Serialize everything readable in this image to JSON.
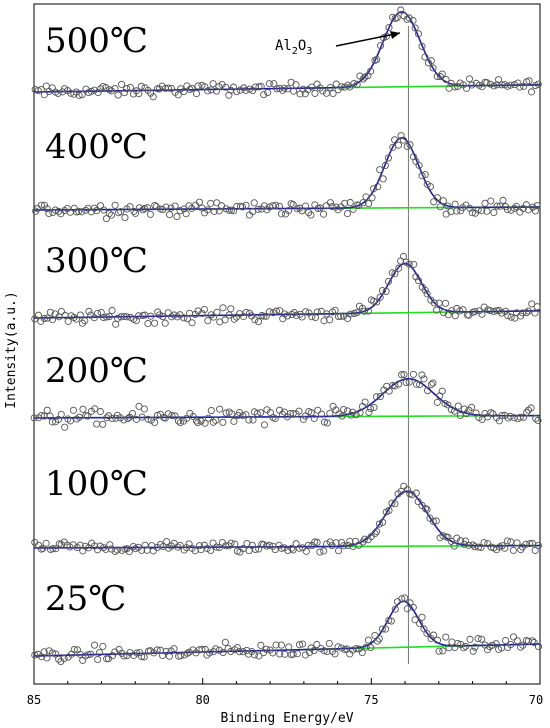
{
  "chart_data": {
    "type": "scatter",
    "title": "",
    "xlabel": "Binding Energy/eV",
    "ylabel": "Intensity(a.u.)",
    "xlim": [
      85,
      70
    ],
    "x_reversed": true,
    "xticks": [
      85,
      80,
      75,
      70
    ],
    "xtick_labels": [
      "85",
      "80",
      "75",
      "70"
    ],
    "grid": false,
    "legend": "none",
    "reference_line": {
      "x": 73.9
    },
    "annotation": {
      "base": "Al",
      "sub1": "2",
      "mid": "O",
      "sub2": "3",
      "points_to": 74.2
    },
    "colors": {
      "fit": "#1f1fa8",
      "background": "#22dd22",
      "points": "#555555",
      "reference": "#777777"
    },
    "series": [
      {
        "name": "500℃",
        "peak_center": 74.1,
        "peak_sigma": 0.55,
        "peak_height": 1.0,
        "background_start": 0.0,
        "background_end": 0.12,
        "noise": 0.08
      },
      {
        "name": "400℃",
        "peak_center": 74.1,
        "peak_sigma": 0.5,
        "peak_height": 1.0,
        "background_start": 0.0,
        "background_end": 0.05,
        "noise": 0.1
      },
      {
        "name": "300℃",
        "peak_center": 74.0,
        "peak_sigma": 0.48,
        "peak_height": 0.85,
        "background_start": 0.0,
        "background_end": 0.12,
        "noise": 0.09
      },
      {
        "name": "200℃",
        "peak_center": 73.9,
        "peak_sigma": 0.75,
        "peak_height": 0.75,
        "background_start": 0.0,
        "background_end": 0.04,
        "noise": 0.12
      },
      {
        "name": "100℃",
        "peak_center": 73.95,
        "peak_sigma": 0.6,
        "peak_height": 0.95,
        "background_start": 0.0,
        "background_end": 0.04,
        "noise": 0.08
      },
      {
        "name": "25℃",
        "peak_center": 74.05,
        "peak_sigma": 0.45,
        "peak_height": 0.85,
        "background_start": 0.0,
        "background_end": 0.2,
        "noise": 0.1
      }
    ]
  }
}
